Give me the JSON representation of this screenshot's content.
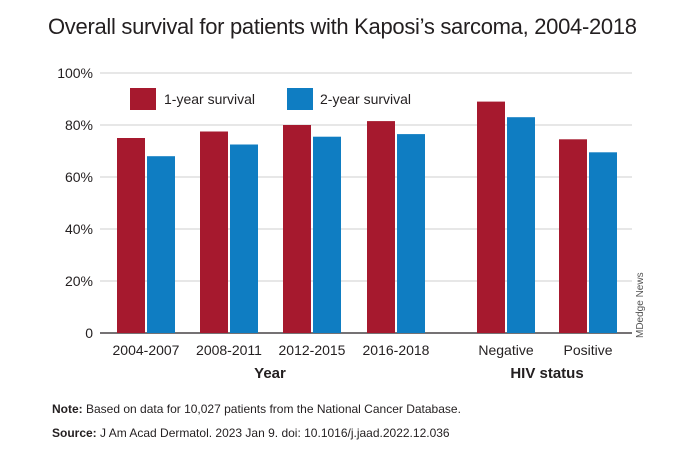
{
  "title": "Overall survival for patients with Kaposi’s sarcoma, 2004-2018",
  "chart_data": {
    "type": "bar",
    "categories": [
      "2004-2007",
      "2008-2011",
      "2012-2015",
      "2016-2018",
      "Negative",
      "Positive"
    ],
    "groups": [
      {
        "label": "Year",
        "categories": [
          "2004-2007",
          "2008-2011",
          "2012-2015",
          "2016-2018"
        ]
      },
      {
        "label": "HIV status",
        "categories": [
          "Negative",
          "Positive"
        ]
      }
    ],
    "series": [
      {
        "name": "1-year survival",
        "color": "#a6192e",
        "values": [
          75,
          77.5,
          80,
          81.5,
          89,
          74.5
        ]
      },
      {
        "name": "2-year survival",
        "color": "#0f7dc2",
        "values": [
          68,
          72.5,
          75.5,
          76.5,
          83,
          69.5
        ]
      }
    ],
    "ylim": [
      0,
      100
    ],
    "yticks": [
      "0",
      "20%",
      "40%",
      "60%",
      "80%",
      "100%"
    ],
    "ytick_values": [
      0,
      20,
      40,
      60,
      80,
      100
    ],
    "grid": true,
    "legend": "top-left",
    "credit": "MDedge News"
  },
  "note_label": "Note:",
  "note_text": " Based on data for 10,027 patients from the National Cancer Database.",
  "source_label": "Source:",
  "source_text": " J Am Acad Dermatol. 2023 Jan 9. doi: 10.1016/j.jaad.2022.12.036"
}
